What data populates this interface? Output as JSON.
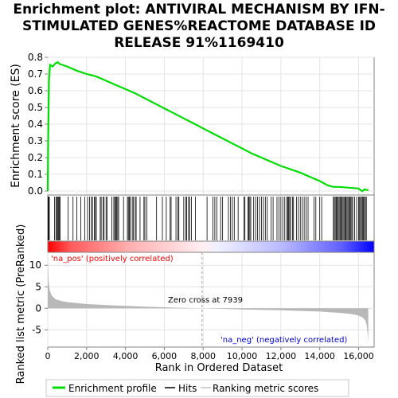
{
  "chart_data": {
    "type": "line",
    "title_lines": [
      "Enrichment plot: ANTIVIRAL MECHANISM BY IFN-",
      "STIMULATED GENES%REACTOME DATABASE ID",
      "RELEASE 91%1169410"
    ],
    "es_ylabel": "Enrichment score (ES)",
    "es_ylim": [
      0.0,
      0.8
    ],
    "es_yticks": [
      "0.0",
      "0.1",
      "0.2",
      "0.3",
      "0.4",
      "0.5",
      "0.6",
      "0.7",
      "0.8"
    ],
    "es_ytick_values": [
      0.0,
      0.1,
      0.2,
      0.3,
      0.4,
      0.5,
      0.6,
      0.7,
      0.8
    ],
    "xlim": [
      0,
      16800
    ],
    "xticks": [
      "0",
      "2,000",
      "4,000",
      "6,000",
      "8,000",
      "10,000",
      "12,000",
      "14,000",
      "16,000"
    ],
    "xtick_values": [
      0,
      2000,
      4000,
      6000,
      8000,
      10000,
      12000,
      14000,
      16000
    ],
    "xlabel": "Rank in Ordered Dataset",
    "rank_ylabel": "Ranked list metric (PreRanked)",
    "rank_ylim": [
      -9,
      13
    ],
    "rank_yticks": [
      "-5",
      "0",
      "5",
      "10"
    ],
    "rank_ytick_values": [
      -5,
      0,
      5,
      10
    ],
    "pos_label": "'na_pos' (positively correlated)",
    "neg_label": "'na_neg' (negatively correlated)",
    "zero_cross_label": "Zero cross at 7939",
    "zero_cross": 7939,
    "n_genes": 16500,
    "grid": true,
    "legend_position": "bottom",
    "colors": {
      "es_line": "#00dd00",
      "pos": "#ff0000",
      "neg": "#0000ff",
      "metric_fill": "#b0b0b0",
      "hits": "#000000"
    },
    "series": [
      {
        "name": "Enrichment profile",
        "x": [
          0,
          20,
          60,
          120,
          250,
          400,
          520,
          620,
          750,
          1000,
          1500,
          2000,
          2500,
          3000,
          3500,
          4000,
          4500,
          5000,
          5500,
          6000,
          6500,
          7000,
          7500,
          8000,
          8500,
          9000,
          9500,
          10000,
          10500,
          11000,
          11500,
          12000,
          12500,
          13000,
          13500,
          14000,
          14400,
          14700,
          15000,
          15500,
          16000,
          16100,
          16200,
          16300,
          16500
        ],
        "y": [
          0.0,
          0.3,
          0.66,
          0.755,
          0.745,
          0.765,
          0.77,
          0.76,
          0.755,
          0.745,
          0.72,
          0.7,
          0.685,
          0.66,
          0.635,
          0.61,
          0.585,
          0.555,
          0.525,
          0.495,
          0.465,
          0.435,
          0.405,
          0.375,
          0.345,
          0.315,
          0.285,
          0.255,
          0.225,
          0.2,
          0.175,
          0.15,
          0.13,
          0.11,
          0.085,
          0.06,
          0.035,
          0.025,
          0.025,
          0.02,
          0.015,
          0.005,
          0.0,
          0.01,
          0.005
        ]
      },
      {
        "name": "Ranking metric scores",
        "x": [
          0,
          10,
          40,
          100,
          200,
          400,
          700,
          1000,
          1500,
          2000,
          3000,
          4000,
          5000,
          6000,
          7000,
          7939,
          9000,
          10000,
          11000,
          12000,
          13000,
          14000,
          14500,
          15000,
          15500,
          15800,
          16000,
          16200,
          16350,
          16420,
          16480,
          16500
        ],
        "y": [
          12.5,
          10.5,
          6.5,
          4.2,
          3.0,
          2.1,
          1.7,
          1.45,
          1.2,
          1.0,
          0.75,
          0.55,
          0.38,
          0.25,
          0.12,
          0.0,
          -0.12,
          -0.25,
          -0.35,
          -0.45,
          -0.6,
          -0.75,
          -0.9,
          -1.05,
          -1.25,
          -1.45,
          -1.7,
          -2.1,
          -2.8,
          -4.0,
          -6.5,
          -8.0
        ]
      }
    ],
    "hits": [
      20,
      45,
      80,
      350,
      420,
      470,
      520,
      560,
      600,
      640,
      1050,
      1300,
      1500,
      1700,
      1900,
      2050,
      2150,
      2250,
      2300,
      2400,
      2450,
      2500,
      2700,
      2750,
      2850,
      2900,
      3000,
      3050,
      3300,
      3400,
      3450,
      3500,
      3550,
      3600,
      3650,
      3900,
      4100,
      4150,
      4200,
      4250,
      4350,
      4400,
      4500,
      4550,
      4750,
      4950,
      5000,
      5100,
      5600,
      5900,
      6100,
      6300,
      6350,
      6600,
      6700,
      6750,
      7000,
      7100,
      7150,
      7250,
      7300,
      7400,
      7600,
      8200,
      8500,
      8600,
      8700,
      8900,
      9000,
      9300,
      9400,
      9500,
      9600,
      9800,
      10100,
      10150,
      10300,
      10350,
      10400,
      10450,
      10600,
      10700,
      10800,
      10900,
      11000,
      11100,
      11200,
      11300,
      11500,
      11600,
      11800,
      11900,
      12000,
      12100,
      12200,
      12300,
      12350,
      12400,
      12450,
      12500,
      12600,
      12650,
      12800,
      12900,
      13000,
      13100,
      13200,
      13300,
      13400,
      13700,
      13800,
      14000,
      14100,
      14700,
      14750,
      14800,
      14850,
      14900,
      14950,
      15000,
      15050,
      15100,
      15150,
      15200,
      15250,
      15300,
      15350,
      15400,
      15450,
      15500,
      15550,
      15600,
      15650,
      15700,
      15800,
      15900,
      16000,
      16050,
      16100,
      16150,
      16200,
      16250,
      16300,
      16350,
      16400
    ]
  },
  "legend": {
    "items": [
      {
        "label": "Enrichment profile",
        "color": "#00dd00"
      },
      {
        "label": "Hits",
        "color": "#000000"
      },
      {
        "label": "Ranking metric scores",
        "color": "#c0c0c0"
      }
    ]
  }
}
